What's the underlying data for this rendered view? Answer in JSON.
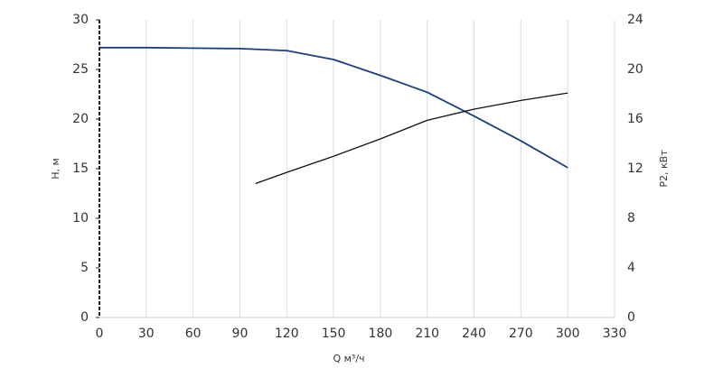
{
  "chart_data": {
    "type": "line",
    "x_label": "Q м³/ч",
    "y_label": "H, м",
    "y2_label": "P2, кВт",
    "xlim": [
      0,
      330
    ],
    "xticks": [
      0,
      30,
      60,
      90,
      120,
      150,
      180,
      210,
      240,
      270,
      300,
      330
    ],
    "ylim": [
      0,
      30
    ],
    "yticks": [
      0,
      5,
      10,
      15,
      20,
      25,
      30
    ],
    "y2lim": [
      0,
      24
    ],
    "y2ticks": [
      0,
      4,
      8,
      12,
      16,
      20,
      24
    ],
    "grid": true,
    "series": [
      {
        "name": "H",
        "color": "#1f3d7a",
        "x": [
          0,
          30,
          60,
          90,
          120,
          150,
          180,
          210,
          240,
          270,
          300
        ],
        "values": [
          27.2,
          27.2,
          27.15,
          27.1,
          26.9,
          26.0,
          24.4,
          22.7,
          20.3,
          17.8,
          15.1
        ]
      },
      {
        "name": "P2",
        "color": "#111111",
        "axis": "y2",
        "x": [
          100,
          120,
          150,
          180,
          210,
          240,
          270,
          300
        ],
        "values": [
          10.8,
          11.7,
          13.0,
          14.4,
          15.9,
          16.8,
          17.5,
          18.1
        ]
      }
    ]
  }
}
